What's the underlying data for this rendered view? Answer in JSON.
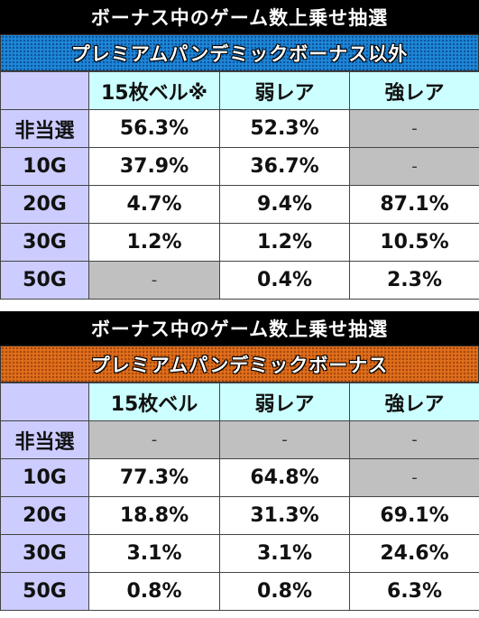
{
  "tables": [
    {
      "title": "ボーナス中のゲーム数上乗せ抽選",
      "subtitle": "プレミアムパンデミックボーナス以外",
      "columns": [
        "15枚ベル※",
        "弱レア",
        "強レア"
      ],
      "rows": [
        {
          "label": "非当選",
          "cells": [
            {
              "v": "56.3%"
            },
            {
              "v": "52.3%"
            },
            {
              "v": "-",
              "na": true
            }
          ]
        },
        {
          "label": "10G",
          "cells": [
            {
              "v": "37.9%"
            },
            {
              "v": "36.7%"
            },
            {
              "v": "-",
              "na": true
            }
          ]
        },
        {
          "label": "20G",
          "cells": [
            {
              "v": "4.7%"
            },
            {
              "v": "9.4%"
            },
            {
              "v": "87.1%"
            }
          ]
        },
        {
          "label": "30G",
          "cells": [
            {
              "v": "1.2%"
            },
            {
              "v": "1.2%"
            },
            {
              "v": "10.5%"
            }
          ]
        },
        {
          "label": "50G",
          "cells": [
            {
              "v": "-",
              "na": true
            },
            {
              "v": "0.4%"
            },
            {
              "v": "2.3%"
            }
          ]
        }
      ]
    },
    {
      "title": "ボーナス中のゲーム数上乗せ抽選",
      "subtitle": "プレミアムパンデミックボーナス",
      "columns": [
        "15枚ベル",
        "弱レア",
        "強レア"
      ],
      "rows": [
        {
          "label": "非当選",
          "cells": [
            {
              "v": "-",
              "na": true
            },
            {
              "v": "-",
              "na": true
            },
            {
              "v": "-",
              "na": true
            }
          ]
        },
        {
          "label": "10G",
          "cells": [
            {
              "v": "77.3%"
            },
            {
              "v": "64.8%"
            },
            {
              "v": "-",
              "na": true
            }
          ]
        },
        {
          "label": "20G",
          "cells": [
            {
              "v": "18.8%"
            },
            {
              "v": "31.3%"
            },
            {
              "v": "69.1%"
            }
          ]
        },
        {
          "label": "30G",
          "cells": [
            {
              "v": "3.1%"
            },
            {
              "v": "3.1%"
            },
            {
              "v": "24.6%"
            }
          ]
        },
        {
          "label": "50G",
          "cells": [
            {
              "v": "0.8%"
            },
            {
              "v": "0.8%"
            },
            {
              "v": "6.3%"
            }
          ]
        }
      ]
    }
  ],
  "colors": {
    "title_bg": "#000000",
    "subtitle_blue": "#1e88d8",
    "subtitle_orange": "#e06f1c",
    "corner_bg": "#ccccff",
    "column_header_bg": "#ccffff",
    "row_header_bg": "#ccccff",
    "na_bg": "#c0c0c0"
  }
}
